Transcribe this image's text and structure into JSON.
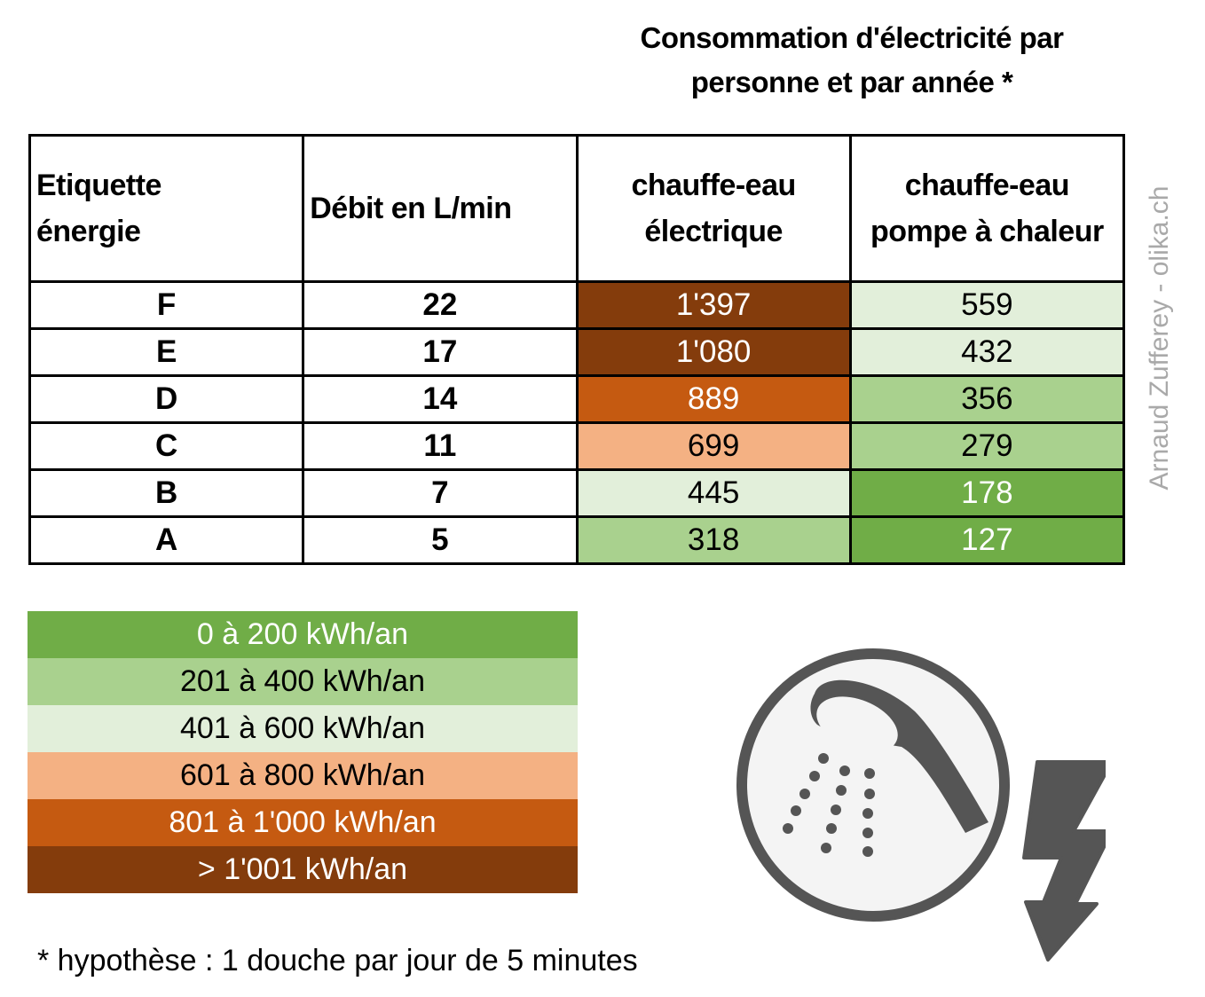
{
  "title": {
    "line1": "Consommation d'électricité par",
    "line2": "personne et par année *"
  },
  "table": {
    "headers": {
      "label": [
        "Etiquette",
        "énergie"
      ],
      "flow": "Débit en L/min",
      "electric": [
        "chauffe-eau",
        "électrique"
      ],
      "heatpump": [
        "chauffe-eau",
        "pompe à chaleur"
      ]
    },
    "rows": [
      {
        "label": "F",
        "flow": "22",
        "electric": "1'397",
        "heatpump": "559",
        "electric_color": "#843C0C",
        "electric_text": "#ffffff",
        "heatpump_color": "#E2EFDA",
        "heatpump_text": "#000000"
      },
      {
        "label": "E",
        "flow": "17",
        "electric": "1'080",
        "heatpump": "432",
        "electric_color": "#843C0C",
        "electric_text": "#ffffff",
        "heatpump_color": "#E2EFDA",
        "heatpump_text": "#000000"
      },
      {
        "label": "D",
        "flow": "14",
        "electric": "889",
        "heatpump": "356",
        "electric_color": "#C55A11",
        "electric_text": "#ffffff",
        "heatpump_color": "#A9D18E",
        "heatpump_text": "#000000"
      },
      {
        "label": "C",
        "flow": "11",
        "electric": "699",
        "heatpump": "279",
        "electric_color": "#F4B183",
        "electric_text": "#000000",
        "heatpump_color": "#A9D18E",
        "heatpump_text": "#000000"
      },
      {
        "label": "B",
        "flow": "7",
        "electric": "445",
        "heatpump": "178",
        "electric_color": "#E2EFDA",
        "electric_text": "#000000",
        "heatpump_color": "#70AD47",
        "heatpump_text": "#ffffff"
      },
      {
        "label": "A",
        "flow": "5",
        "electric": "318",
        "heatpump": "127",
        "electric_color": "#A9D18E",
        "electric_text": "#000000",
        "heatpump_color": "#70AD47",
        "heatpump_text": "#ffffff"
      }
    ]
  },
  "watermark": "Arnaud Zufferey - olika.ch",
  "legend": [
    {
      "label": "0 à 200 kWh/an",
      "color": "#70AD47",
      "text": "#ffffff"
    },
    {
      "label": "201 à 400 kWh/an",
      "color": "#A9D18E",
      "text": "#000000"
    },
    {
      "label": "401 à 600 kWh/an",
      "color": "#E2EFDA",
      "text": "#000000"
    },
    {
      "label": "601 à 800 kWh/an",
      "color": "#F4B183",
      "text": "#000000"
    },
    {
      "label": "801 à 1'000 kWh/an",
      "color": "#C55A11",
      "text": "#ffffff"
    },
    {
      "label": "> 1'001 kWh/an",
      "color": "#843C0C",
      "text": "#ffffff"
    }
  ],
  "footnote": "* hypothèse : 1 douche par jour de 5 minutes",
  "icons": {
    "shower": "shower-head-icon",
    "lightning": "lightning-bolt-icon",
    "icon_color": "#555555"
  },
  "chart_data": {
    "type": "table",
    "title": "Consommation d'électricité par personne et par année *",
    "columns": [
      "Etiquette énergie",
      "Débit en L/min",
      "chauffe-eau électrique",
      "chauffe-eau pompe à chaleur"
    ],
    "categories": [
      "F",
      "E",
      "D",
      "C",
      "B",
      "A"
    ],
    "series": [
      {
        "name": "Débit en L/min",
        "values": [
          22,
          17,
          14,
          11,
          7,
          5
        ]
      },
      {
        "name": "chauffe-eau électrique (kWh/an)",
        "values": [
          1397,
          1080,
          889,
          699,
          445,
          318
        ]
      },
      {
        "name": "chauffe-eau pompe à chaleur (kWh/an)",
        "values": [
          559,
          432,
          356,
          279,
          178,
          127
        ]
      }
    ],
    "legend": [
      {
        "range": "0 à 200 kWh/an",
        "color": "#70AD47"
      },
      {
        "range": "201 à 400 kWh/an",
        "color": "#A9D18E"
      },
      {
        "range": "401 à 600 kWh/an",
        "color": "#E2EFDA"
      },
      {
        "range": "601 à 800 kWh/an",
        "color": "#F4B183"
      },
      {
        "range": "801 à 1'000 kWh/an",
        "color": "#C55A11"
      },
      {
        "range": "> 1'001 kWh/an",
        "color": "#843C0C"
      }
    ],
    "annotations": [
      "* hypothèse : 1 douche par jour de 5 minutes",
      "Arnaud Zufferey - olika.ch"
    ]
  }
}
